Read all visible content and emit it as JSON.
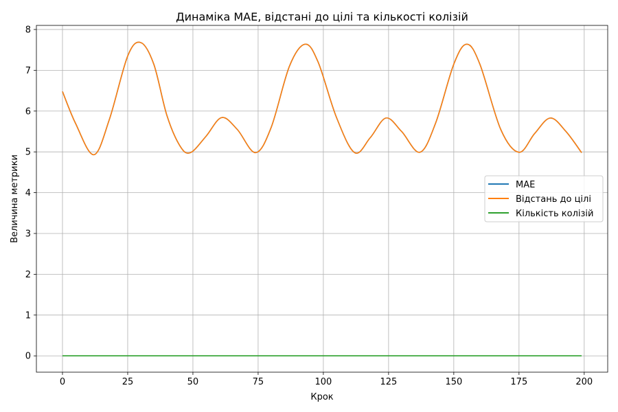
{
  "chart_data": {
    "type": "line",
    "title": "Динаміка MAE, відстані до цілі та кількості колізій",
    "xlabel": "Крок",
    "ylabel": "Величина метрики",
    "xlim": [
      -10,
      209
    ],
    "ylim": [
      -0.4,
      8.1
    ],
    "xticks": [
      0,
      25,
      50,
      75,
      100,
      125,
      150,
      175,
      200
    ],
    "yticks": [
      0,
      1,
      2,
      3,
      4,
      5,
      6,
      7,
      8
    ],
    "xtick_labels": [
      "0",
      "25",
      "50",
      "75",
      "100",
      "125",
      "150",
      "175",
      "200"
    ],
    "ytick_labels": [
      "0",
      "1",
      "2",
      "3",
      "4",
      "5",
      "6",
      "7",
      "8"
    ],
    "grid": true,
    "legend_position": "center-right",
    "x": [
      0,
      5,
      12,
      18,
      25,
      30,
      35,
      40,
      45,
      49,
      55,
      61,
      67,
      74,
      80,
      87,
      93,
      98,
      105,
      112,
      118,
      124,
      130,
      137,
      143,
      150,
      155,
      160,
      168,
      175,
      181,
      187,
      193,
      199
    ],
    "series": [
      {
        "name": "MAE",
        "color": "#1f77b4",
        "values": [
          6.48,
          5.7,
          4.93,
          5.8,
          7.35,
          7.68,
          7.15,
          5.9,
          5.15,
          4.98,
          5.38,
          5.84,
          5.55,
          4.98,
          5.6,
          7.1,
          7.64,
          7.2,
          5.85,
          4.98,
          5.35,
          5.83,
          5.5,
          4.99,
          5.7,
          7.15,
          7.64,
          7.15,
          5.55,
          4.99,
          5.45,
          5.83,
          5.5,
          4.98
        ]
      },
      {
        "name": "Відстань до цілі",
        "color": "#ff7f0e",
        "values": [
          6.48,
          5.7,
          4.93,
          5.8,
          7.35,
          7.68,
          7.15,
          5.9,
          5.15,
          4.98,
          5.38,
          5.84,
          5.55,
          4.98,
          5.6,
          7.1,
          7.64,
          7.2,
          5.85,
          4.98,
          5.35,
          5.83,
          5.5,
          4.99,
          5.7,
          7.15,
          7.64,
          7.15,
          5.55,
          4.99,
          5.45,
          5.83,
          5.5,
          4.98
        ]
      },
      {
        "name": "Кількість колізій",
        "color": "#2ca02c",
        "values": [
          0,
          0,
          0,
          0,
          0,
          0,
          0,
          0,
          0,
          0,
          0,
          0,
          0,
          0,
          0,
          0,
          0,
          0,
          0,
          0,
          0,
          0,
          0,
          0,
          0,
          0,
          0,
          0,
          0,
          0,
          0,
          0,
          0,
          0
        ]
      }
    ]
  }
}
